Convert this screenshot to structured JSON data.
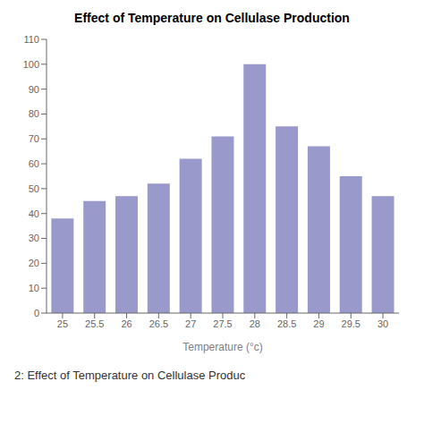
{
  "chart_data": {
    "type": "bar",
    "title": "Effect of Temperature on Cellulase Production",
    "xlabel": "Temperature (°c)",
    "annotation": "2: Effect of Temperature on Cellulase Produc",
    "categories": [
      "25",
      "25.5",
      "26",
      "26.5",
      "27",
      "27.5",
      "28",
      "28.5",
      "29",
      "29.5",
      "30"
    ],
    "values": [
      38,
      45,
      47,
      52,
      62,
      71,
      100,
      75,
      67,
      55,
      47
    ],
    "color": "#9999cc",
    "ylim": [
      0,
      110
    ],
    "yticks": [
      0,
      10,
      20,
      30,
      40,
      50,
      60,
      70,
      80,
      90,
      100,
      110
    ],
    "grid": false
  }
}
